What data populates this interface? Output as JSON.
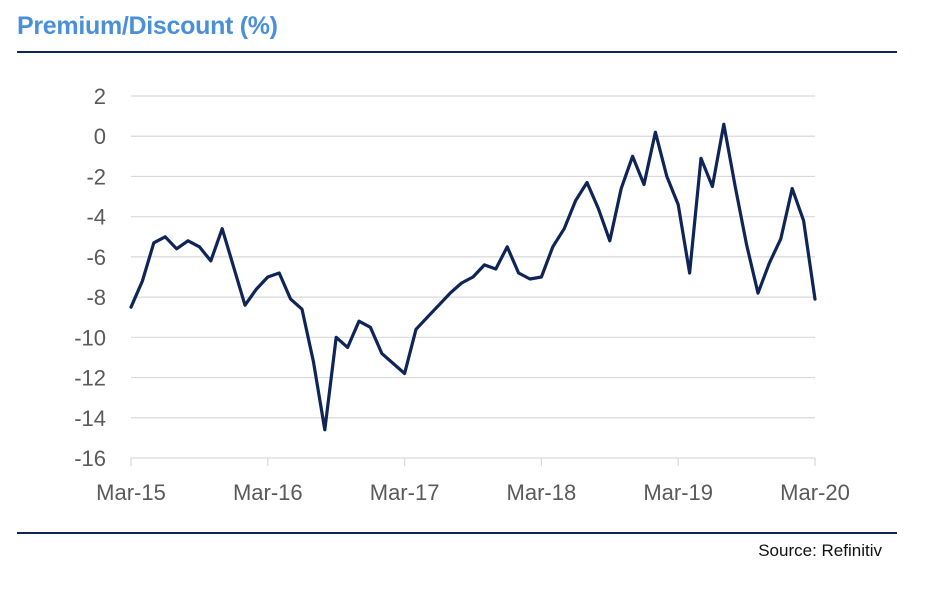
{
  "colors": {
    "title": "#4a90d9",
    "line": "#0f2557",
    "grid": "#d9d9d9",
    "rule": "#0f2557",
    "tick_text": "#5a5a5a"
  },
  "source": "Source: Refinitiv",
  "chart_data": {
    "type": "line",
    "title": "Premium/Discount (%)",
    "xlabel": "",
    "ylabel": "",
    "ylim": [
      -16,
      2
    ],
    "yticks": [
      2,
      0,
      -2,
      -4,
      -6,
      -8,
      -10,
      -12,
      -14,
      -16
    ],
    "xlim": [
      "2015-03",
      "2020-03"
    ],
    "xticks": [
      "Mar-15",
      "Mar-16",
      "Mar-17",
      "Mar-18",
      "Mar-19",
      "Mar-20"
    ],
    "grid": "horizontal",
    "legend": "none",
    "series": [
      {
        "x": [
          "2015-03",
          "2015-04",
          "2015-05",
          "2015-06",
          "2015-07",
          "2015-08",
          "2015-09",
          "2015-10",
          "2015-11",
          "2015-12",
          "2016-01",
          "2016-02",
          "2016-03",
          "2016-04",
          "2016-05",
          "2016-06",
          "2016-07",
          "2016-08",
          "2016-09",
          "2016-10",
          "2016-11",
          "2016-12",
          "2017-01",
          "2017-02",
          "2017-03",
          "2017-04",
          "2017-05",
          "2017-06",
          "2017-07",
          "2017-08",
          "2017-09",
          "2017-10",
          "2017-11",
          "2017-12",
          "2018-01",
          "2018-02",
          "2018-03",
          "2018-04",
          "2018-05",
          "2018-06",
          "2018-07",
          "2018-08",
          "2018-09",
          "2018-10",
          "2018-11",
          "2018-12",
          "2019-01",
          "2019-02",
          "2019-03",
          "2019-04",
          "2019-05",
          "2019-06",
          "2019-07",
          "2019-08",
          "2019-09",
          "2019-10",
          "2019-11",
          "2019-12",
          "2020-01",
          "2020-02",
          "2020-03"
        ],
        "values": [
          -8.5,
          -7.2,
          -5.3,
          -5.0,
          -5.6,
          -5.2,
          -5.5,
          -6.2,
          -4.6,
          -6.5,
          -8.4,
          -7.6,
          -7.0,
          -6.8,
          -8.1,
          -8.6,
          -11.2,
          -14.6,
          -10.0,
          -10.5,
          -9.2,
          -9.5,
          -10.8,
          -11.3,
          -11.8,
          -9.6,
          -9.0,
          -8.4,
          -7.8,
          -7.3,
          -7.0,
          -6.4,
          -6.6,
          -5.5,
          -6.8,
          -7.1,
          -7.0,
          -5.5,
          -4.6,
          -3.2,
          -2.3,
          -3.6,
          -5.2,
          -2.6,
          -1.0,
          -2.4,
          0.2,
          -2.0,
          -3.4,
          -6.8,
          -1.1,
          -2.5,
          0.6,
          -2.5,
          -5.4,
          -7.8,
          -6.3,
          -5.1,
          -2.6,
          -4.2,
          -8.1
        ]
      }
    ]
  }
}
